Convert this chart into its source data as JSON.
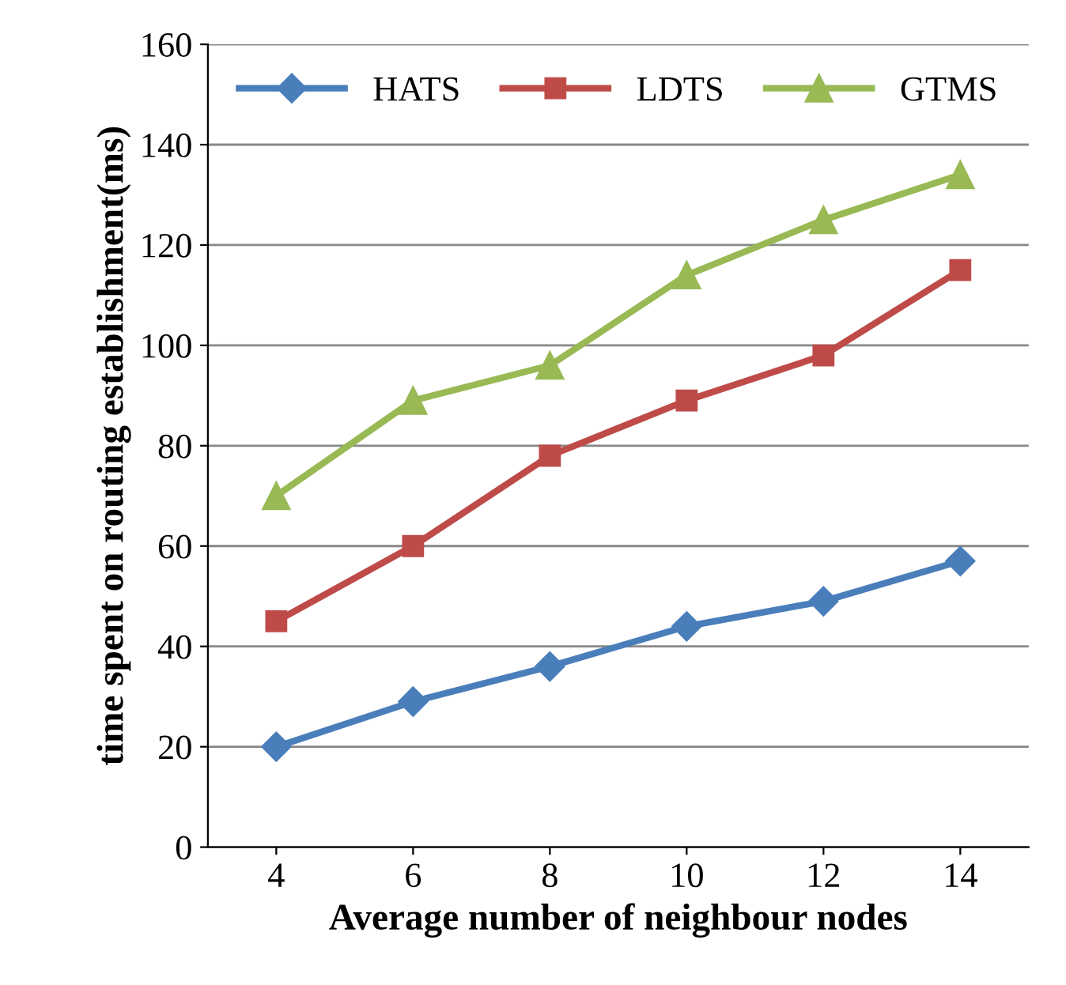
{
  "chart_data": {
    "type": "line",
    "xlabel": "Average number of neighbour nodes",
    "ylabel": "time spent on routing establishment(ms)",
    "categories": [
      "4",
      "6",
      "8",
      "10",
      "12",
      "14"
    ],
    "series": [
      {
        "name": "HATS",
        "color": "#4a7ebb",
        "marker": "diamond",
        "values": [
          20,
          29,
          36,
          44,
          49,
          57
        ]
      },
      {
        "name": "LDTS",
        "color": "#be4b48",
        "marker": "square",
        "values": [
          45,
          60,
          78,
          89,
          98,
          115
        ]
      },
      {
        "name": "GTMS",
        "color": "#98b954",
        "marker": "triangle",
        "values": [
          70,
          89,
          96,
          114,
          125,
          134
        ]
      }
    ],
    "ylim": [
      0,
      160
    ],
    "yticks": [
      0,
      20,
      40,
      60,
      80,
      100,
      120,
      140,
      160
    ],
    "grid": "y",
    "legend": "top",
    "line_style": "solid"
  }
}
